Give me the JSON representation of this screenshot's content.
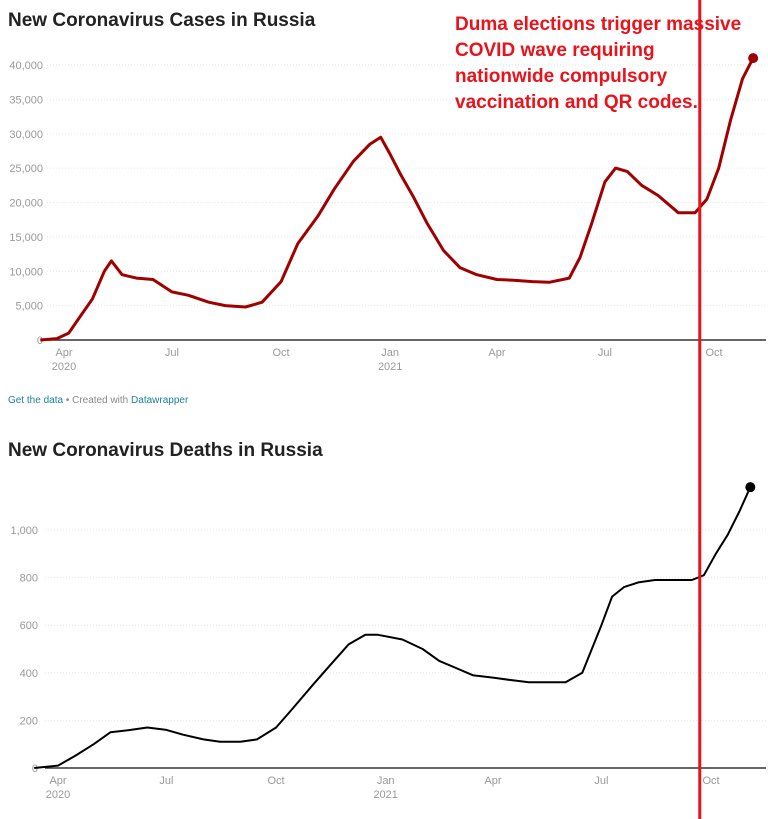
{
  "chart_data": [
    {
      "type": "line",
      "title": "New Coronavirus Cases in Russia",
      "color": "#a00000",
      "ylim": [
        0,
        40000
      ],
      "yticks": [
        0,
        5000,
        10000,
        15000,
        20000,
        25000,
        30000,
        35000,
        40000
      ],
      "ytick_labels": [
        "0",
        "5,000",
        "10,000",
        "15,000",
        "20,000",
        "25,000",
        "30,000",
        "35,000",
        "40,000"
      ],
      "xticks": [
        {
          "date": "2020-04-01",
          "label": "Apr",
          "sub": "2020"
        },
        {
          "date": "2020-07-01",
          "label": "Jul",
          "sub": ""
        },
        {
          "date": "2020-10-01",
          "label": "Oct",
          "sub": ""
        },
        {
          "date": "2021-01-01",
          "label": "Jan",
          "sub": "2021"
        },
        {
          "date": "2021-04-01",
          "label": "Apr",
          "sub": ""
        },
        {
          "date": "2021-07-01",
          "label": "Jul",
          "sub": ""
        },
        {
          "date": "2021-10-01",
          "label": "Oct",
          "sub": ""
        }
      ],
      "points": [
        [
          "2020-03-12",
          0
        ],
        [
          "2020-03-26",
          200
        ],
        [
          "2020-04-05",
          1000
        ],
        [
          "2020-04-15",
          3500
        ],
        [
          "2020-04-25",
          6000
        ],
        [
          "2020-05-05",
          10000
        ],
        [
          "2020-05-11",
          11500
        ],
        [
          "2020-05-20",
          9500
        ],
        [
          "2020-06-01",
          9000
        ],
        [
          "2020-06-15",
          8800
        ],
        [
          "2020-07-01",
          7000
        ],
        [
          "2020-07-15",
          6500
        ],
        [
          "2020-08-01",
          5500
        ],
        [
          "2020-08-15",
          5000
        ],
        [
          "2020-09-01",
          4800
        ],
        [
          "2020-09-15",
          5500
        ],
        [
          "2020-10-01",
          8500
        ],
        [
          "2020-10-15",
          14000
        ],
        [
          "2020-11-01",
          18000
        ],
        [
          "2020-11-15",
          22000
        ],
        [
          "2020-12-01",
          26000
        ],
        [
          "2020-12-15",
          28500
        ],
        [
          "2020-12-24",
          29500
        ],
        [
          "2021-01-01",
          27000
        ],
        [
          "2021-01-10",
          24000
        ],
        [
          "2021-01-20",
          21000
        ],
        [
          "2021-02-01",
          17000
        ],
        [
          "2021-02-15",
          13000
        ],
        [
          "2021-03-01",
          10500
        ],
        [
          "2021-03-15",
          9500
        ],
        [
          "2021-04-01",
          8800
        ],
        [
          "2021-04-15",
          8700
        ],
        [
          "2021-05-01",
          8500
        ],
        [
          "2021-05-15",
          8400
        ],
        [
          "2021-06-01",
          9000
        ],
        [
          "2021-06-10",
          12000
        ],
        [
          "2021-06-20",
          17000
        ],
        [
          "2021-07-01",
          23000
        ],
        [
          "2021-07-10",
          25000
        ],
        [
          "2021-07-20",
          24500
        ],
        [
          "2021-08-01",
          22500
        ],
        [
          "2021-08-15",
          21000
        ],
        [
          "2021-09-01",
          18500
        ],
        [
          "2021-09-15",
          18500
        ],
        [
          "2021-09-25",
          20500
        ],
        [
          "2021-10-05",
          25000
        ],
        [
          "2021-10-15",
          32000
        ],
        [
          "2021-10-25",
          38000
        ],
        [
          "2021-11-03",
          41000
        ]
      ]
    },
    {
      "type": "line",
      "title": "New Coronavirus Deaths in Russia",
      "color": "#000000",
      "ylim": [
        0,
        1000
      ],
      "yticks": [
        0,
        200,
        400,
        600,
        800,
        1000
      ],
      "ytick_labels": [
        "0",
        "200",
        "400",
        "600",
        "800",
        "1,000"
      ],
      "xticks": [
        {
          "date": "2020-04-01",
          "label": "Apr",
          "sub": "2020"
        },
        {
          "date": "2020-07-01",
          "label": "Jul",
          "sub": ""
        },
        {
          "date": "2020-10-01",
          "label": "Oct",
          "sub": ""
        },
        {
          "date": "2021-01-01",
          "label": "Jan",
          "sub": "2021"
        },
        {
          "date": "2021-04-01",
          "label": "Apr",
          "sub": ""
        },
        {
          "date": "2021-07-01",
          "label": "Jul",
          "sub": ""
        },
        {
          "date": "2021-10-01",
          "label": "Oct",
          "sub": ""
        }
      ],
      "points": [
        [
          "2020-03-12",
          0
        ],
        [
          "2020-04-01",
          10
        ],
        [
          "2020-04-15",
          50
        ],
        [
          "2020-05-01",
          100
        ],
        [
          "2020-05-15",
          150
        ],
        [
          "2020-06-01",
          160
        ],
        [
          "2020-06-15",
          170
        ],
        [
          "2020-07-01",
          160
        ],
        [
          "2020-07-15",
          140
        ],
        [
          "2020-08-01",
          120
        ],
        [
          "2020-08-15",
          110
        ],
        [
          "2020-09-01",
          110
        ],
        [
          "2020-09-15",
          120
        ],
        [
          "2020-10-01",
          170
        ],
        [
          "2020-10-15",
          250
        ],
        [
          "2020-11-01",
          350
        ],
        [
          "2020-11-15",
          430
        ],
        [
          "2020-12-01",
          520
        ],
        [
          "2020-12-15",
          560
        ],
        [
          "2020-12-25",
          560
        ],
        [
          "2021-01-15",
          540
        ],
        [
          "2021-02-01",
          500
        ],
        [
          "2021-02-15",
          450
        ],
        [
          "2021-03-01",
          420
        ],
        [
          "2021-03-15",
          390
        ],
        [
          "2021-04-01",
          380
        ],
        [
          "2021-04-15",
          370
        ],
        [
          "2021-05-01",
          360
        ],
        [
          "2021-05-15",
          360
        ],
        [
          "2021-06-01",
          360
        ],
        [
          "2021-06-15",
          400
        ],
        [
          "2021-07-01",
          600
        ],
        [
          "2021-07-10",
          720
        ],
        [
          "2021-07-20",
          760
        ],
        [
          "2021-08-01",
          780
        ],
        [
          "2021-08-15",
          790
        ],
        [
          "2021-09-01",
          790
        ],
        [
          "2021-09-15",
          790
        ],
        [
          "2021-09-25",
          810
        ],
        [
          "2021-10-05",
          900
        ],
        [
          "2021-10-15",
          980
        ],
        [
          "2021-10-25",
          1080
        ],
        [
          "2021-11-03",
          1180
        ]
      ]
    }
  ],
  "annotation": {
    "text": "Duma elections trigger massive COVID wave requiring nationwide compulsory vaccination and QR codes.",
    "color": "#e8131b",
    "date": "2021-09-19"
  },
  "footer": {
    "get_data": "Get the data",
    "sep": " • Created with ",
    "tool": "Datawrapper"
  }
}
